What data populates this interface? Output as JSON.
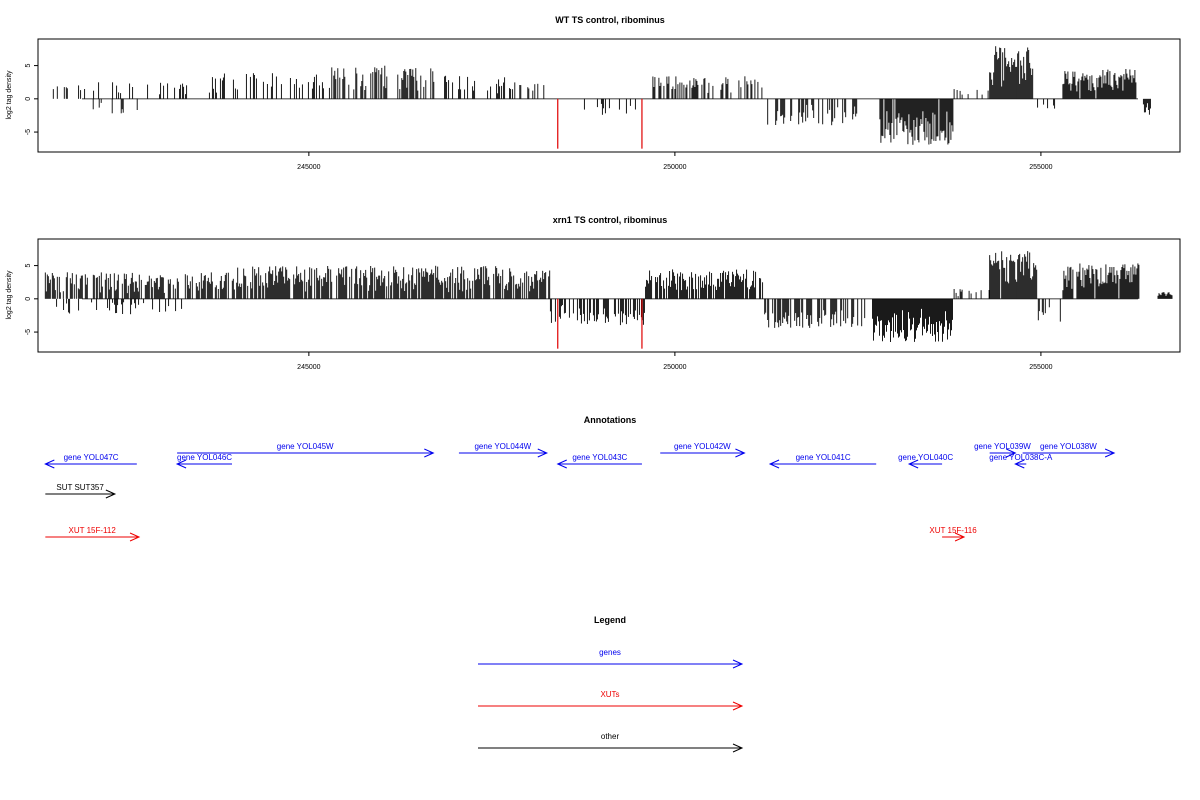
{
  "chart_data": [
    {
      "type": "bar",
      "title": "WT TS control, ribominus",
      "ylabel": "log2 tag density",
      "xlim": [
        241300,
        256900
      ],
      "ylim": [
        -8,
        9
      ],
      "x_ticks": [
        245000,
        250000,
        255000
      ],
      "x_tick_labels": [
        "245000",
        "250000",
        "255000"
      ],
      "y_ticks": [
        -5,
        0,
        5
      ],
      "y_tick_labels": [
        "-5",
        "0",
        "5"
      ],
      "highlighted_positions": [
        248400,
        249550
      ],
      "highlight_color": "#e00000",
      "bar_color": "#000000",
      "segments": [
        {
          "start": 241400,
          "end": 241800,
          "amp": 2,
          "sign": 1,
          "density": 0.2
        },
        {
          "start": 241800,
          "end": 243400,
          "amp": 2.5,
          "sign": 1,
          "density": 0.12
        },
        {
          "start": 242000,
          "end": 242800,
          "amp": 2.2,
          "sign": -1,
          "density": 0.15
        },
        {
          "start": 243600,
          "end": 245300,
          "amp": 4,
          "sign": 1,
          "density": 0.35
        },
        {
          "start": 245300,
          "end": 246800,
          "amp": 5,
          "sign": 1,
          "density": 0.45
        },
        {
          "start": 246800,
          "end": 247800,
          "amp": 3.5,
          "sign": 1,
          "density": 0.35
        },
        {
          "start": 247800,
          "end": 248300,
          "amp": 2.5,
          "sign": 1,
          "density": 0.2
        },
        {
          "start": 248600,
          "end": 249500,
          "amp": 2.5,
          "sign": -1,
          "density": 0.2
        },
        {
          "start": 249700,
          "end": 251200,
          "amp": 3.5,
          "sign": 1,
          "density": 0.45
        },
        {
          "start": 251200,
          "end": 252600,
          "amp": 4,
          "sign": -1,
          "density": 0.5
        },
        {
          "start": 252800,
          "end": 253800,
          "amp": 7,
          "sign": -1,
          "density": 0.95
        },
        {
          "start": 253800,
          "end": 254300,
          "amp": 1.5,
          "sign": 1,
          "density": 0.2
        },
        {
          "start": 254300,
          "end": 254900,
          "amp": 8,
          "sign": 1,
          "density": 0.95
        },
        {
          "start": 254900,
          "end": 255200,
          "amp": 1.5,
          "sign": -1,
          "density": 0.3
        },
        {
          "start": 255300,
          "end": 256300,
          "amp": 4.5,
          "sign": 1,
          "density": 0.9
        },
        {
          "start": 256400,
          "end": 256500,
          "amp": 3,
          "sign": -1,
          "density": 1
        }
      ],
      "highlight_values": [
        -7.5,
        -7.5
      ]
    },
    {
      "type": "bar",
      "title": "xrn1 TS control, ribominus",
      "ylabel": "log2 tag density",
      "xlim": [
        241300,
        256900
      ],
      "ylim": [
        -8,
        9
      ],
      "x_ticks": [
        245000,
        250000,
        255000
      ],
      "x_tick_labels": [
        "245000",
        "250000",
        "255000"
      ],
      "y_ticks": [
        -5,
        0,
        5
      ],
      "y_tick_labels": [
        "-5",
        "0",
        "5"
      ],
      "highlighted_positions": [
        248400,
        249550
      ],
      "highlight_color": "#e00000",
      "bar_color": "#000000",
      "segments": [
        {
          "start": 241400,
          "end": 244000,
          "amp": 4,
          "sign": 1,
          "density": 0.65
        },
        {
          "start": 241500,
          "end": 243300,
          "amp": 2.5,
          "sign": -1,
          "density": 0.2
        },
        {
          "start": 244000,
          "end": 248300,
          "amp": 5,
          "sign": 1,
          "density": 0.75
        },
        {
          "start": 248300,
          "end": 249600,
          "amp": 4,
          "sign": -1,
          "density": 0.6
        },
        {
          "start": 249600,
          "end": 251200,
          "amp": 4.5,
          "sign": 1,
          "density": 0.8
        },
        {
          "start": 251200,
          "end": 252600,
          "amp": 4.5,
          "sign": -1,
          "density": 0.55
        },
        {
          "start": 252700,
          "end": 253800,
          "amp": 6.5,
          "sign": -1,
          "density": 0.95
        },
        {
          "start": 253800,
          "end": 254300,
          "amp": 1.5,
          "sign": 1,
          "density": 0.25
        },
        {
          "start": 254300,
          "end": 254950,
          "amp": 7.5,
          "sign": 1,
          "density": 0.95
        },
        {
          "start": 254950,
          "end": 255300,
          "amp": 4,
          "sign": -1,
          "density": 0.4
        },
        {
          "start": 255300,
          "end": 256350,
          "amp": 5.5,
          "sign": 1,
          "density": 0.95
        },
        {
          "start": 256600,
          "end": 256800,
          "amp": 1,
          "sign": 1,
          "density": 1
        }
      ],
      "highlight_values": [
        -7.5,
        -7.5
      ]
    }
  ],
  "annotations": {
    "title": "Annotations",
    "colors": {
      "genes": "#0000ee",
      "XUTs": "#ee0000",
      "other": "#000000"
    },
    "genes": [
      {
        "label": "gene YOL047C",
        "start": 241400,
        "end": 242650,
        "strand": "-",
        "row": 2
      },
      {
        "label": "gene YOL046C",
        "start": 243200,
        "end": 243950,
        "strand": "-",
        "row": 2
      },
      {
        "label": "gene YOL045W",
        "start": 243200,
        "end": 246700,
        "strand": "+",
        "row": 1
      },
      {
        "label": "gene YOL044W",
        "start": 247050,
        "end": 248250,
        "strand": "+",
        "row": 1
      },
      {
        "label": "gene YOL043C",
        "start": 248400,
        "end": 249550,
        "strand": "-",
        "row": 2
      },
      {
        "label": "gene YOL042W",
        "start": 249800,
        "end": 250950,
        "strand": "+",
        "row": 1
      },
      {
        "label": "gene YOL041C",
        "start": 251300,
        "end": 252750,
        "strand": "-",
        "row": 2
      },
      {
        "label": "gene YOL040C",
        "start": 253200,
        "end": 253650,
        "strand": "-",
        "row": 2
      },
      {
        "label": "gene YOL039W",
        "start": 254300,
        "end": 254650,
        "strand": "+",
        "row": 1
      },
      {
        "label": "gene YOL038C-A",
        "start": 254650,
        "end": 254800,
        "strand": "-",
        "row": 2
      },
      {
        "label": "gene YOL038W",
        "start": 254750,
        "end": 256000,
        "strand": "+",
        "row": 1
      }
    ],
    "other": [
      {
        "label": "SUT SUT357",
        "start": 241400,
        "end": 242350,
        "strand": "+"
      }
    ],
    "xuts": [
      {
        "label": "XUT 15F-112",
        "start": 241400,
        "end": 242680,
        "strand": "+"
      },
      {
        "label": "XUT 15F-116",
        "start": 253650,
        "end": 253950,
        "strand": "+"
      }
    ]
  },
  "legend": {
    "title": "Legend",
    "items": [
      {
        "label": "genes",
        "color": "#0000ee"
      },
      {
        "label": "XUTs",
        "color": "#ee0000"
      },
      {
        "label": "other",
        "color": "#000000"
      }
    ]
  }
}
